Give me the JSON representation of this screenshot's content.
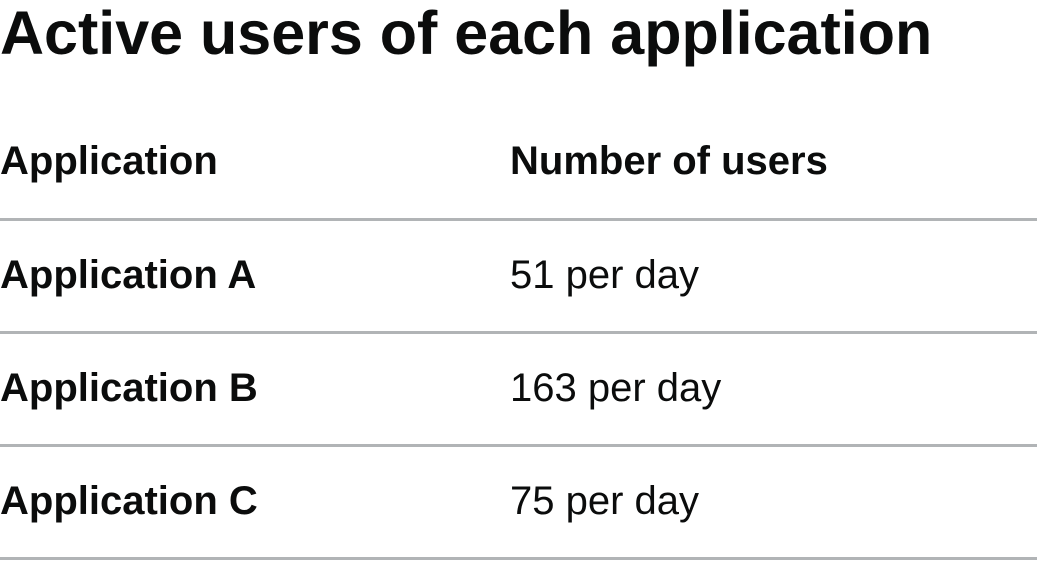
{
  "title": "Active users of each application",
  "table": {
    "headers": {
      "application": "Application",
      "users": "Number of users"
    },
    "rows": [
      {
        "application": "Application A",
        "users": "51 per day"
      },
      {
        "application": "Application B",
        "users": "163 per day"
      },
      {
        "application": "Application C",
        "users": "75 per day"
      }
    ]
  }
}
